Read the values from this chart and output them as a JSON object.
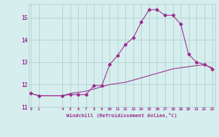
{
  "hours": [
    0,
    1,
    4,
    5,
    6,
    7,
    8,
    9,
    10,
    11,
    12,
    13,
    14,
    15,
    16,
    17,
    18,
    19,
    20,
    21,
    22,
    23
  ],
  "windchill": [
    11.6,
    11.5,
    11.5,
    11.55,
    11.55,
    11.55,
    11.95,
    11.95,
    12.9,
    13.3,
    13.8,
    14.1,
    14.8,
    15.35,
    15.35,
    15.1,
    15.1,
    14.7,
    13.35,
    13.0,
    12.9,
    12.7
  ],
  "temp": [
    11.6,
    11.5,
    11.5,
    11.6,
    11.65,
    11.7,
    11.8,
    11.9,
    12.0,
    12.05,
    12.1,
    12.2,
    12.3,
    12.4,
    12.5,
    12.6,
    12.7,
    12.75,
    12.8,
    12.85,
    12.88,
    12.75
  ],
  "line_color": "#9b2d8e",
  "bg_color": "#d6eeee",
  "grid_color": "#b0d0d0",
  "xlabel": "Windchill (Refroidissement éolien,°C)",
  "xlabel_color": "#9b2d8e",
  "tick_color": "#9b2d8e",
  "ylim": [
    11.0,
    15.6
  ],
  "yticks": [
    11,
    12,
    13,
    14,
    15
  ],
  "xticks": [
    0,
    1,
    4,
    5,
    6,
    7,
    8,
    9,
    10,
    11,
    12,
    13,
    14,
    15,
    16,
    17,
    18,
    19,
    20,
    21,
    22,
    23
  ],
  "xlim": [
    -0.3,
    23.3
  ]
}
